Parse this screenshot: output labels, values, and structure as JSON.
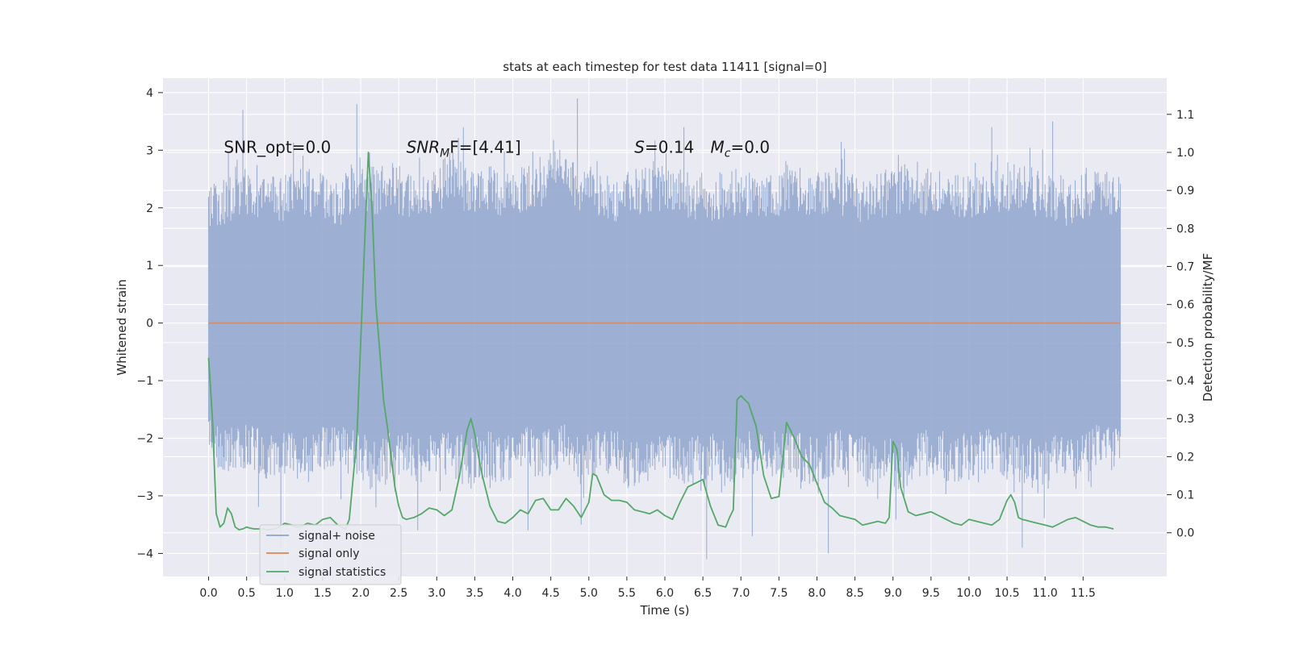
{
  "chart_data": {
    "type": "line",
    "title": "stats at each timestep for test data 11411 [signal=0]",
    "xlabel": "Time (s)",
    "ylabel": "Whitened strain",
    "y2label": "Detection probability/MF",
    "xlim": [
      -0.6,
      12.6
    ],
    "ylim": [
      -4.4,
      4.25
    ],
    "y2lim": [
      -0.115,
      1.195
    ],
    "x_ticks": [
      0.0,
      0.5,
      1.0,
      1.5,
      2.0,
      2.5,
      3.0,
      3.5,
      4.0,
      4.5,
      5.0,
      5.5,
      6.0,
      6.5,
      7.0,
      7.5,
      8.0,
      8.5,
      9.0,
      9.5,
      10.0,
      10.5,
      11.0,
      11.5
    ],
    "x_tick_labels": [
      "0.0",
      "0.5",
      "1.0",
      "1.5",
      "2.0",
      "2.5",
      "3.0",
      "3.5",
      "4.0",
      "4.5",
      "5.0",
      "5.5",
      "6.0",
      "6.5",
      "7.0",
      "7.5",
      "8.0",
      "8.5",
      "9.0",
      "9.5",
      "10.0",
      "10.5",
      "11.0",
      "11.5"
    ],
    "y_ticks": [
      -4,
      -3,
      -2,
      -1,
      0,
      1,
      2,
      3,
      4
    ],
    "y_tick_labels": [
      "−4",
      "−3",
      "−2",
      "−1",
      "0",
      "1",
      "2",
      "3",
      "4"
    ],
    "y2_ticks": [
      0.0,
      0.1,
      0.2,
      0.3,
      0.4,
      0.5,
      0.6,
      0.7,
      0.8,
      0.9,
      1.0,
      1.1
    ],
    "y2_tick_labels": [
      "0.0",
      "0.1",
      "0.2",
      "0.3",
      "0.4",
      "0.5",
      "0.6",
      "0.7",
      "0.8",
      "0.9",
      "1.0",
      "1.1"
    ],
    "grid": true,
    "legend_position": "lower-left",
    "annotations": [
      {
        "text": "SNR_opt=0.0",
        "x": 0.2,
        "y": 3.05
      },
      {
        "text_main": "SNR",
        "text_sub": "M",
        "text_rest": "F=[4.41]",
        "x": 2.6,
        "y": 3.05
      },
      {
        "text_main": "S",
        "text_rest": "=0.14",
        "x": 5.6,
        "y": 3.05
      },
      {
        "text_main": "M",
        "text_sub": "c",
        "text_rest": "=0.0",
        "x": 6.6,
        "y": 3.05
      }
    ],
    "series": [
      {
        "name": "signal+ noise",
        "axis": "left",
        "color": "#8fa4cc",
        "x_start": 0.0,
        "x_end": 11.99,
        "envelope_upper": [
          2.3,
          2.4,
          2.6,
          2.5,
          2.4,
          2.6,
          2.5,
          2.3,
          2.8,
          2.6,
          2.7,
          2.4,
          2.5,
          2.9,
          2.6,
          2.6,
          2.5,
          2.7,
          2.8,
          2.9,
          2.6,
          2.5,
          2.4,
          2.6,
          2.7,
          2.6,
          2.5,
          2.4,
          2.6,
          2.5,
          2.4,
          2.7,
          2.6,
          2.5,
          2.6,
          2.4,
          2.5,
          2.6,
          2.7,
          2.5,
          2.6,
          2.4,
          2.5,
          2.7,
          2.6,
          2.5,
          2.3,
          2.5,
          2.6,
          2.4
        ],
        "envelope_lower": [
          -2.3,
          -2.5,
          -2.4,
          -2.6,
          -2.5,
          -2.7,
          -2.5,
          -2.4,
          -2.6,
          -2.8,
          -2.5,
          -2.7,
          -2.6,
          -2.5,
          -2.8,
          -2.6,
          -2.7,
          -2.5,
          -2.6,
          -2.4,
          -2.7,
          -2.5,
          -2.6,
          -2.8,
          -2.5,
          -2.6,
          -2.7,
          -2.6,
          -2.8,
          -2.5,
          -2.6,
          -2.4,
          -2.7,
          -2.6,
          -2.5,
          -2.6,
          -2.7,
          -2.8,
          -2.6,
          -2.5,
          -2.7,
          -2.6,
          -2.5,
          -2.6,
          -2.7,
          -2.8,
          -2.5,
          -2.6,
          -2.4,
          -2.5
        ],
        "peaks": [
          {
            "x": 0.45,
            "y": 3.7
          },
          {
            "x": 1.95,
            "y": 3.8
          },
          {
            "x": 4.85,
            "y": 3.9
          },
          {
            "x": 3.35,
            "y": 3.4
          },
          {
            "x": 6.25,
            "y": 3.4
          },
          {
            "x": 11.1,
            "y": 3.5
          },
          {
            "x": 10.3,
            "y": 3.4
          },
          {
            "x": 0.95,
            "y": -3.9
          },
          {
            "x": 2.2,
            "y": -3.2
          },
          {
            "x": 2.75,
            "y": -3.6
          },
          {
            "x": 4.2,
            "y": -3.6
          },
          {
            "x": 6.55,
            "y": -4.1
          },
          {
            "x": 7.15,
            "y": -3.7
          },
          {
            "x": 8.15,
            "y": -4.0
          },
          {
            "x": 10.7,
            "y": -3.9
          },
          {
            "x": 4.9,
            "y": -3.5
          }
        ]
      },
      {
        "name": "signal only",
        "axis": "left",
        "color": "#dd8452",
        "x": [
          0.0,
          11.99
        ],
        "y": [
          0.0,
          0.0
        ]
      },
      {
        "name": "signal statistics",
        "axis": "right",
        "color": "#55a868",
        "x": [
          0.0,
          0.05,
          0.1,
          0.15,
          0.2,
          0.25,
          0.3,
          0.35,
          0.4,
          0.45,
          0.5,
          0.55,
          0.6,
          0.65,
          0.7,
          0.8,
          0.9,
          1.0,
          1.1,
          1.15,
          1.2,
          1.3,
          1.4,
          1.5,
          1.6,
          1.7,
          1.8,
          1.85,
          1.95,
          2.05,
          2.1,
          2.15,
          2.2,
          2.25,
          2.3,
          2.35,
          2.4,
          2.45,
          2.5,
          2.55,
          2.6,
          2.7,
          2.8,
          2.9,
          3.0,
          3.1,
          3.2,
          3.3,
          3.4,
          3.45,
          3.5,
          3.55,
          3.6,
          3.7,
          3.8,
          3.9,
          4.0,
          4.1,
          4.2,
          4.3,
          4.4,
          4.5,
          4.6,
          4.7,
          4.8,
          4.9,
          5.0,
          5.05,
          5.1,
          5.2,
          5.3,
          5.4,
          5.5,
          5.6,
          5.7,
          5.8,
          5.9,
          6.0,
          6.1,
          6.2,
          6.3,
          6.4,
          6.5,
          6.6,
          6.7,
          6.8,
          6.85,
          6.9,
          6.95,
          7.0,
          7.1,
          7.2,
          7.3,
          7.4,
          7.5,
          7.6,
          7.7,
          7.8,
          7.9,
          8.0,
          8.1,
          8.2,
          8.3,
          8.4,
          8.5,
          8.6,
          8.7,
          8.8,
          8.9,
          8.95,
          9.0,
          9.05,
          9.1,
          9.2,
          9.3,
          9.4,
          9.5,
          9.6,
          9.7,
          9.8,
          9.9,
          10.0,
          10.1,
          10.2,
          10.3,
          10.4,
          10.5,
          10.55,
          10.6,
          10.65,
          10.7,
          10.8,
          10.9,
          11.0,
          11.1,
          11.2,
          11.3,
          11.4,
          11.5,
          11.6,
          11.7,
          11.8,
          11.9
        ],
        "y": [
          0.46,
          0.3,
          0.05,
          0.015,
          0.025,
          0.065,
          0.05,
          0.015,
          0.008,
          0.01,
          0.015,
          0.012,
          0.01,
          0.01,
          0.01,
          0.008,
          0.012,
          0.025,
          0.02,
          0.015,
          0.015,
          0.025,
          0.02,
          0.035,
          0.04,
          0.02,
          0.01,
          0.035,
          0.25,
          0.75,
          1.0,
          0.85,
          0.6,
          0.48,
          0.35,
          0.28,
          0.2,
          0.12,
          0.07,
          0.04,
          0.035,
          0.04,
          0.05,
          0.065,
          0.06,
          0.045,
          0.06,
          0.15,
          0.27,
          0.3,
          0.26,
          0.2,
          0.15,
          0.07,
          0.03,
          0.025,
          0.04,
          0.06,
          0.05,
          0.085,
          0.09,
          0.06,
          0.06,
          0.09,
          0.07,
          0.04,
          0.08,
          0.155,
          0.15,
          0.1,
          0.085,
          0.085,
          0.08,
          0.06,
          0.055,
          0.05,
          0.06,
          0.045,
          0.035,
          0.08,
          0.12,
          0.13,
          0.14,
          0.07,
          0.02,
          0.015,
          0.04,
          0.06,
          0.35,
          0.36,
          0.34,
          0.28,
          0.15,
          0.09,
          0.095,
          0.29,
          0.25,
          0.2,
          0.18,
          0.13,
          0.08,
          0.065,
          0.045,
          0.04,
          0.035,
          0.02,
          0.025,
          0.03,
          0.025,
          0.04,
          0.24,
          0.22,
          0.12,
          0.055,
          0.045,
          0.05,
          0.055,
          0.045,
          0.035,
          0.025,
          0.02,
          0.035,
          0.03,
          0.025,
          0.02,
          0.035,
          0.085,
          0.1,
          0.08,
          0.04,
          0.035,
          0.03,
          0.025,
          0.02,
          0.015,
          0.025,
          0.035,
          0.04,
          0.03,
          0.02,
          0.015,
          0.015,
          0.01
        ]
      }
    ]
  },
  "legend": {
    "items": [
      {
        "label": "signal+ noise",
        "color": "#8fa4cc"
      },
      {
        "label": "signal only",
        "color": "#dd8452"
      },
      {
        "label": "signal statistics",
        "color": "#55a868"
      }
    ]
  },
  "colors": {
    "plot_background": "#eaeaf2",
    "grid": "#ffffff",
    "text": "#262626"
  }
}
